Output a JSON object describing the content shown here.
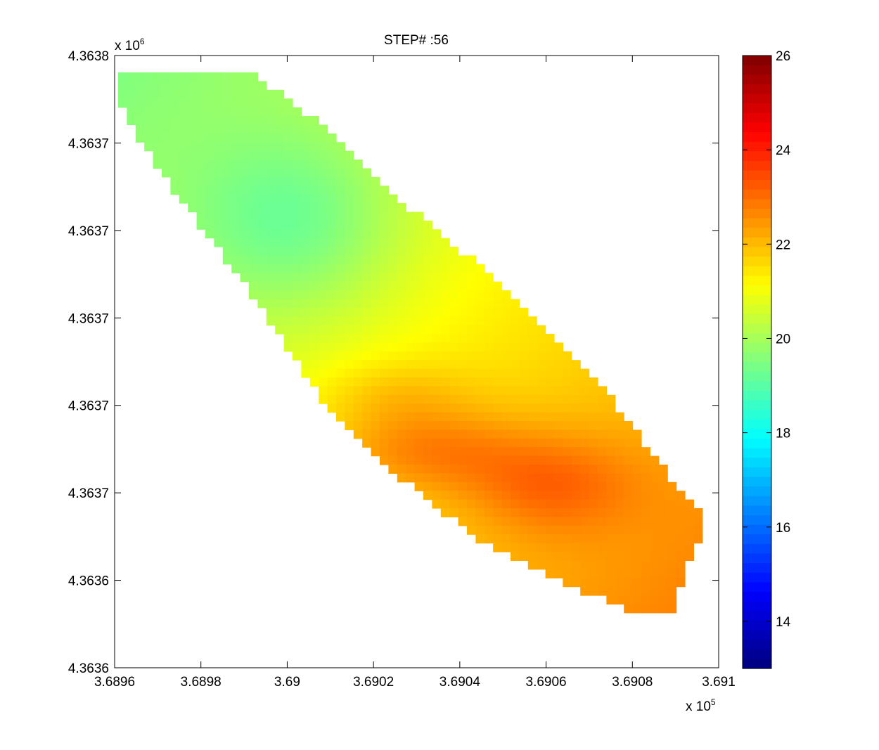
{
  "chart_data": {
    "type": "heatmap",
    "title": "STEP# :56",
    "xlabel": "",
    "ylabel": "",
    "x_multiplier_label": "x 10",
    "x_multiplier_exp": "5",
    "y_multiplier_label": "x 10",
    "y_multiplier_exp": "6",
    "xlim": [
      3.6896,
      3.691
    ],
    "ylim": [
      4.3636,
      4.3638
    ],
    "x_ticks": [
      "3.6896",
      "3.6898",
      "3.69",
      "3.6902",
      "3.6904",
      "3.6906",
      "3.6908",
      "3.691"
    ],
    "y_ticks": [
      "4.3638",
      "4.3637",
      "4.3637",
      "4.3637",
      "4.3637",
      "4.3637",
      "4.3636",
      "4.3636"
    ],
    "colorbar": {
      "colormap": "jet",
      "clim": [
        13,
        26
      ],
      "ticks": [
        14,
        16,
        18,
        20,
        22,
        24,
        26
      ]
    },
    "field_summary": {
      "region": "diagonal band from upper-left to lower-right",
      "cool_center_value": 18,
      "warm_center_value": 24,
      "upper_left_corner_value": 19.5,
      "lower_right_tip_value": 22.8
    },
    "grid": false
  }
}
